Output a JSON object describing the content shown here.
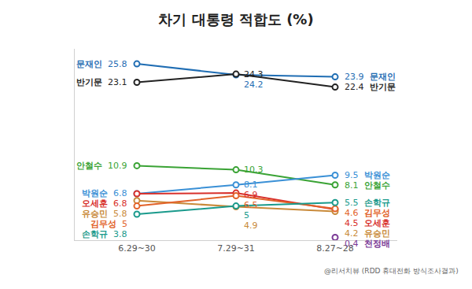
{
  "chart_data": {
    "type": "line",
    "title": "차기 대통령 적합도 (%)",
    "source": "@리서치뷰 (RDD 휴대전화 방식조사결과)",
    "categories": [
      "6.29~30",
      "7.29~31",
      "8.27~28"
    ],
    "series": [
      {
        "name": "문재인",
        "color": "#1f6db3",
        "values": [
          25.8,
          24.2,
          23.9
        ]
      },
      {
        "name": "반기문",
        "color": "#222222",
        "values": [
          23.1,
          24.3,
          22.4
        ]
      },
      {
        "name": "안철수",
        "color": "#3aa335",
        "values": [
          10.9,
          10.3,
          8.1
        ]
      },
      {
        "name": "박원순",
        "color": "#3a90d6",
        "values": [
          6.8,
          8.1,
          9.5
        ]
      },
      {
        "name": "오세훈",
        "color": "#d8302b",
        "values": [
          6.8,
          6.9,
          4.5
        ]
      },
      {
        "name": "유승민",
        "color": "#c98a3a",
        "values": [
          5.8,
          4.9,
          4.2
        ]
      },
      {
        "name": "김무성",
        "color": "#e2632a",
        "values": [
          5.0,
          6.5,
          4.6
        ]
      },
      {
        "name": "손학규",
        "color": "#1a9a8c",
        "values": [
          3.8,
          5.0,
          5.5
        ]
      },
      {
        "name": "천정배",
        "color": "#7b3a96",
        "values": [
          null,
          null,
          0.4
        ]
      }
    ],
    "ylim": [
      0,
      28
    ],
    "grid": false,
    "tick_labels": "x",
    "data_labels": true,
    "marker": "circle"
  }
}
